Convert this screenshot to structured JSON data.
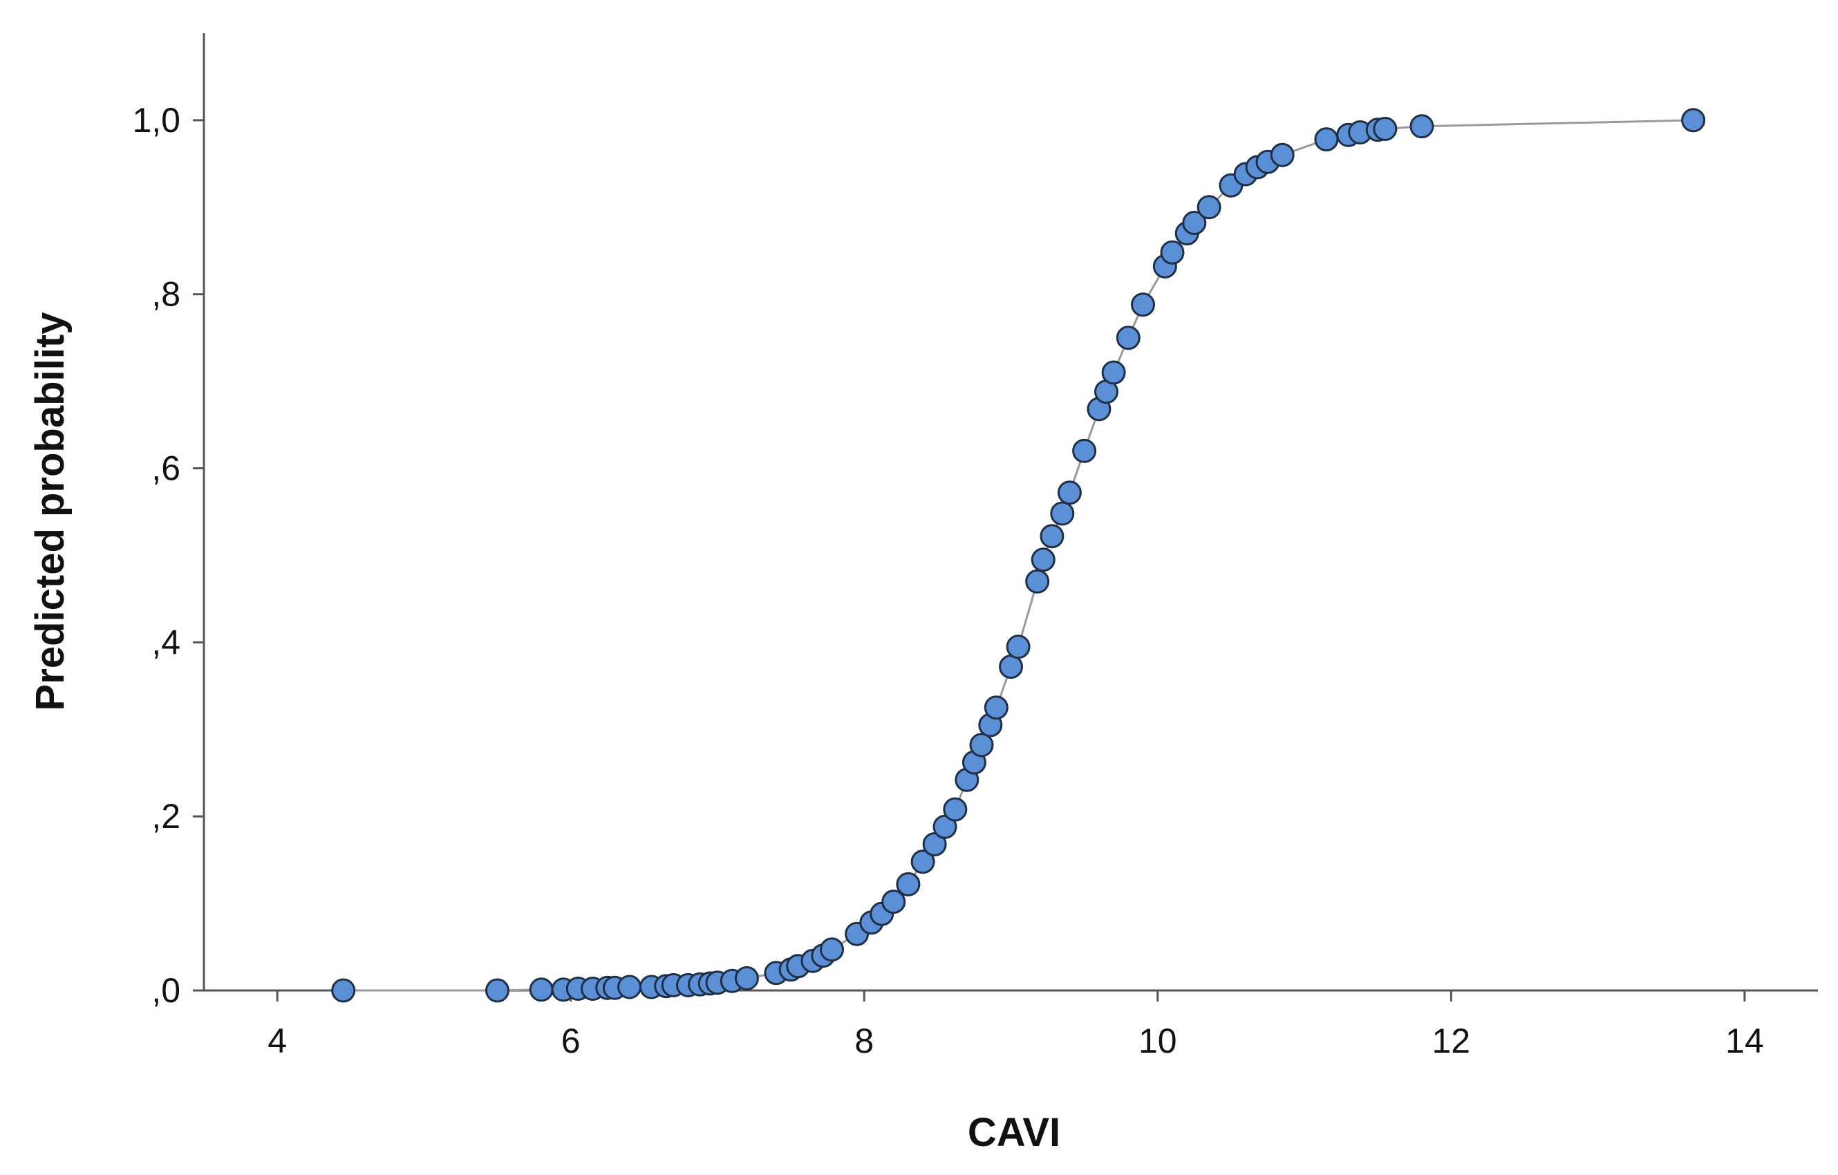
{
  "chart_data": {
    "type": "scatter",
    "title": "",
    "xlabel": "CAVI",
    "ylabel": "Predicted probability",
    "xlim": [
      3.5,
      14.5
    ],
    "ylim": [
      0.0,
      1.1
    ],
    "x_ticks": [
      4,
      6,
      8,
      10,
      12,
      14
    ],
    "x_tick_labels": [
      "4",
      "6",
      "8",
      "10",
      "12",
      "14"
    ],
    "y_ticks": [
      0.0,
      0.2,
      0.4,
      0.6,
      0.8,
      1.0
    ],
    "y_tick_labels": [
      ",0",
      ",2",
      ",4",
      ",6",
      ",8",
      "1,0"
    ],
    "grid": false,
    "legend": "none",
    "connecting_line": true,
    "colors": {
      "marker_fill": "#5b8fd6",
      "marker_edge": "#1f2f45",
      "line": "#9a9a9a",
      "axis": "#555555"
    },
    "points": [
      {
        "x": 4.45,
        "y": 0.0
      },
      {
        "x": 5.5,
        "y": 0.0
      },
      {
        "x": 5.8,
        "y": 0.001
      },
      {
        "x": 5.95,
        "y": 0.001
      },
      {
        "x": 6.05,
        "y": 0.002
      },
      {
        "x": 6.15,
        "y": 0.002
      },
      {
        "x": 6.25,
        "y": 0.003
      },
      {
        "x": 6.3,
        "y": 0.003
      },
      {
        "x": 6.4,
        "y": 0.004
      },
      {
        "x": 6.55,
        "y": 0.004
      },
      {
        "x": 6.65,
        "y": 0.005
      },
      {
        "x": 6.7,
        "y": 0.006
      },
      {
        "x": 6.8,
        "y": 0.006
      },
      {
        "x": 6.88,
        "y": 0.007
      },
      {
        "x": 6.95,
        "y": 0.008
      },
      {
        "x": 7.0,
        "y": 0.009
      },
      {
        "x": 7.1,
        "y": 0.011
      },
      {
        "x": 7.2,
        "y": 0.014
      },
      {
        "x": 7.4,
        "y": 0.02
      },
      {
        "x": 7.5,
        "y": 0.024
      },
      {
        "x": 7.55,
        "y": 0.028
      },
      {
        "x": 7.65,
        "y": 0.034
      },
      {
        "x": 7.72,
        "y": 0.04
      },
      {
        "x": 7.78,
        "y": 0.047
      },
      {
        "x": 7.95,
        "y": 0.065
      },
      {
        "x": 8.05,
        "y": 0.078
      },
      {
        "x": 8.12,
        "y": 0.088
      },
      {
        "x": 8.2,
        "y": 0.102
      },
      {
        "x": 8.3,
        "y": 0.122
      },
      {
        "x": 8.4,
        "y": 0.148
      },
      {
        "x": 8.48,
        "y": 0.168
      },
      {
        "x": 8.55,
        "y": 0.188
      },
      {
        "x": 8.62,
        "y": 0.208
      },
      {
        "x": 8.7,
        "y": 0.242
      },
      {
        "x": 8.75,
        "y": 0.262
      },
      {
        "x": 8.8,
        "y": 0.282
      },
      {
        "x": 8.86,
        "y": 0.305
      },
      {
        "x": 8.9,
        "y": 0.325
      },
      {
        "x": 9.0,
        "y": 0.372
      },
      {
        "x": 9.05,
        "y": 0.395
      },
      {
        "x": 9.18,
        "y": 0.47
      },
      {
        "x": 9.22,
        "y": 0.495
      },
      {
        "x": 9.28,
        "y": 0.522
      },
      {
        "x": 9.35,
        "y": 0.548
      },
      {
        "x": 9.4,
        "y": 0.572
      },
      {
        "x": 9.5,
        "y": 0.62
      },
      {
        "x": 9.6,
        "y": 0.668
      },
      {
        "x": 9.65,
        "y": 0.688
      },
      {
        "x": 9.7,
        "y": 0.71
      },
      {
        "x": 9.8,
        "y": 0.75
      },
      {
        "x": 9.9,
        "y": 0.788
      },
      {
        "x": 10.05,
        "y": 0.832
      },
      {
        "x": 10.1,
        "y": 0.848
      },
      {
        "x": 10.2,
        "y": 0.87
      },
      {
        "x": 10.25,
        "y": 0.882
      },
      {
        "x": 10.35,
        "y": 0.9
      },
      {
        "x": 10.5,
        "y": 0.925
      },
      {
        "x": 10.6,
        "y": 0.938
      },
      {
        "x": 10.68,
        "y": 0.946
      },
      {
        "x": 10.75,
        "y": 0.952
      },
      {
        "x": 10.85,
        "y": 0.96
      },
      {
        "x": 11.15,
        "y": 0.978
      },
      {
        "x": 11.3,
        "y": 0.983
      },
      {
        "x": 11.38,
        "y": 0.986
      },
      {
        "x": 11.5,
        "y": 0.989
      },
      {
        "x": 11.55,
        "y": 0.99
      },
      {
        "x": 11.8,
        "y": 0.993
      },
      {
        "x": 13.65,
        "y": 1.0
      }
    ]
  }
}
